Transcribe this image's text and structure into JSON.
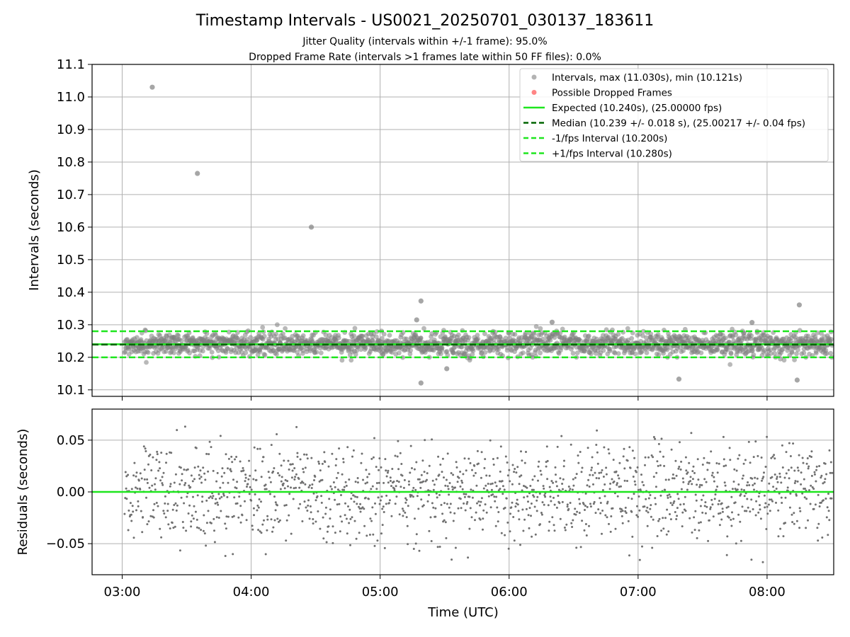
{
  "chart_data": {
    "type": "scatter",
    "title": "Timestamp Intervals - US0021_20250701_030137_183611",
    "subtitle_lines": [
      "Jitter Quality (intervals within +/-1 frame): 95.0%",
      "Dropped Frame Rate (intervals >1 frames late within 50 FF files): 0.0%"
    ],
    "xlabel": "Time (UTC)",
    "x_unit": "time of day (UTC)",
    "xlim": [
      "02:46",
      "08:31"
    ],
    "x_ticks": [
      "03:00",
      "04:00",
      "05:00",
      "06:00",
      "07:00",
      "08:00"
    ],
    "grid": true,
    "legend_position": "top-right",
    "top_panel": {
      "ylabel": "Intervals (seconds)",
      "ylim": [
        10.08,
        11.1
      ],
      "y_ticks": [
        "10.1",
        "10.2",
        "10.3",
        "10.4",
        "10.5",
        "10.6",
        "10.7",
        "10.8",
        "10.9",
        "11.0",
        "11.1"
      ],
      "expected_interval": 10.24,
      "median_interval": 10.239,
      "lower_interval": 10.2,
      "upper_interval": 10.28,
      "typical_spread": 0.018,
      "series": [
        {
          "name": "Intervals, max (11.030s), min (10.121s)",
          "color": "#808080",
          "marker": "circle"
        },
        {
          "name": "Possible Dropped Frames",
          "color": "#ff3333",
          "marker": "circle"
        },
        {
          "name": "Expected (10.240s), (25.00000 fps)",
          "color": "#1ee61e",
          "style": "solid"
        },
        {
          "name": "Median (10.239 +/- 0.018 s), (25.00217 +/- 0.04 fps)",
          "color": "#006400",
          "style": "dashed"
        },
        {
          "name": "-1/fps Interval (10.200s)",
          "color": "#1ee61e",
          "style": "dashed"
        },
        {
          "name": "+1/fps Interval (10.280s)",
          "color": "#1ee61e",
          "style": "dashed"
        }
      ],
      "outliers": [
        {
          "x": "03:14",
          "y": 11.03
        },
        {
          "x": "03:35",
          "y": 10.765
        },
        {
          "x": "04:28",
          "y": 10.6
        },
        {
          "x": "05:19",
          "y": 10.373
        },
        {
          "x": "05:17",
          "y": 10.315
        },
        {
          "x": "05:19",
          "y": 10.121
        },
        {
          "x": "06:20",
          "y": 10.308
        },
        {
          "x": "07:53",
          "y": 10.307
        },
        {
          "x": "08:15",
          "y": 10.361
        },
        {
          "x": "08:14",
          "y": 10.13
        },
        {
          "x": "07:19",
          "y": 10.133
        },
        {
          "x": "05:31",
          "y": 10.165
        }
      ]
    },
    "bottom_panel": {
      "ylabel": "Residuals (seconds)",
      "ylim": [
        -0.08,
        0.08
      ],
      "y_ticks": [
        "−0.05",
        "0.00",
        "0.05"
      ],
      "zero_line_color": "#1ee61e",
      "point_color": "#707070"
    }
  }
}
